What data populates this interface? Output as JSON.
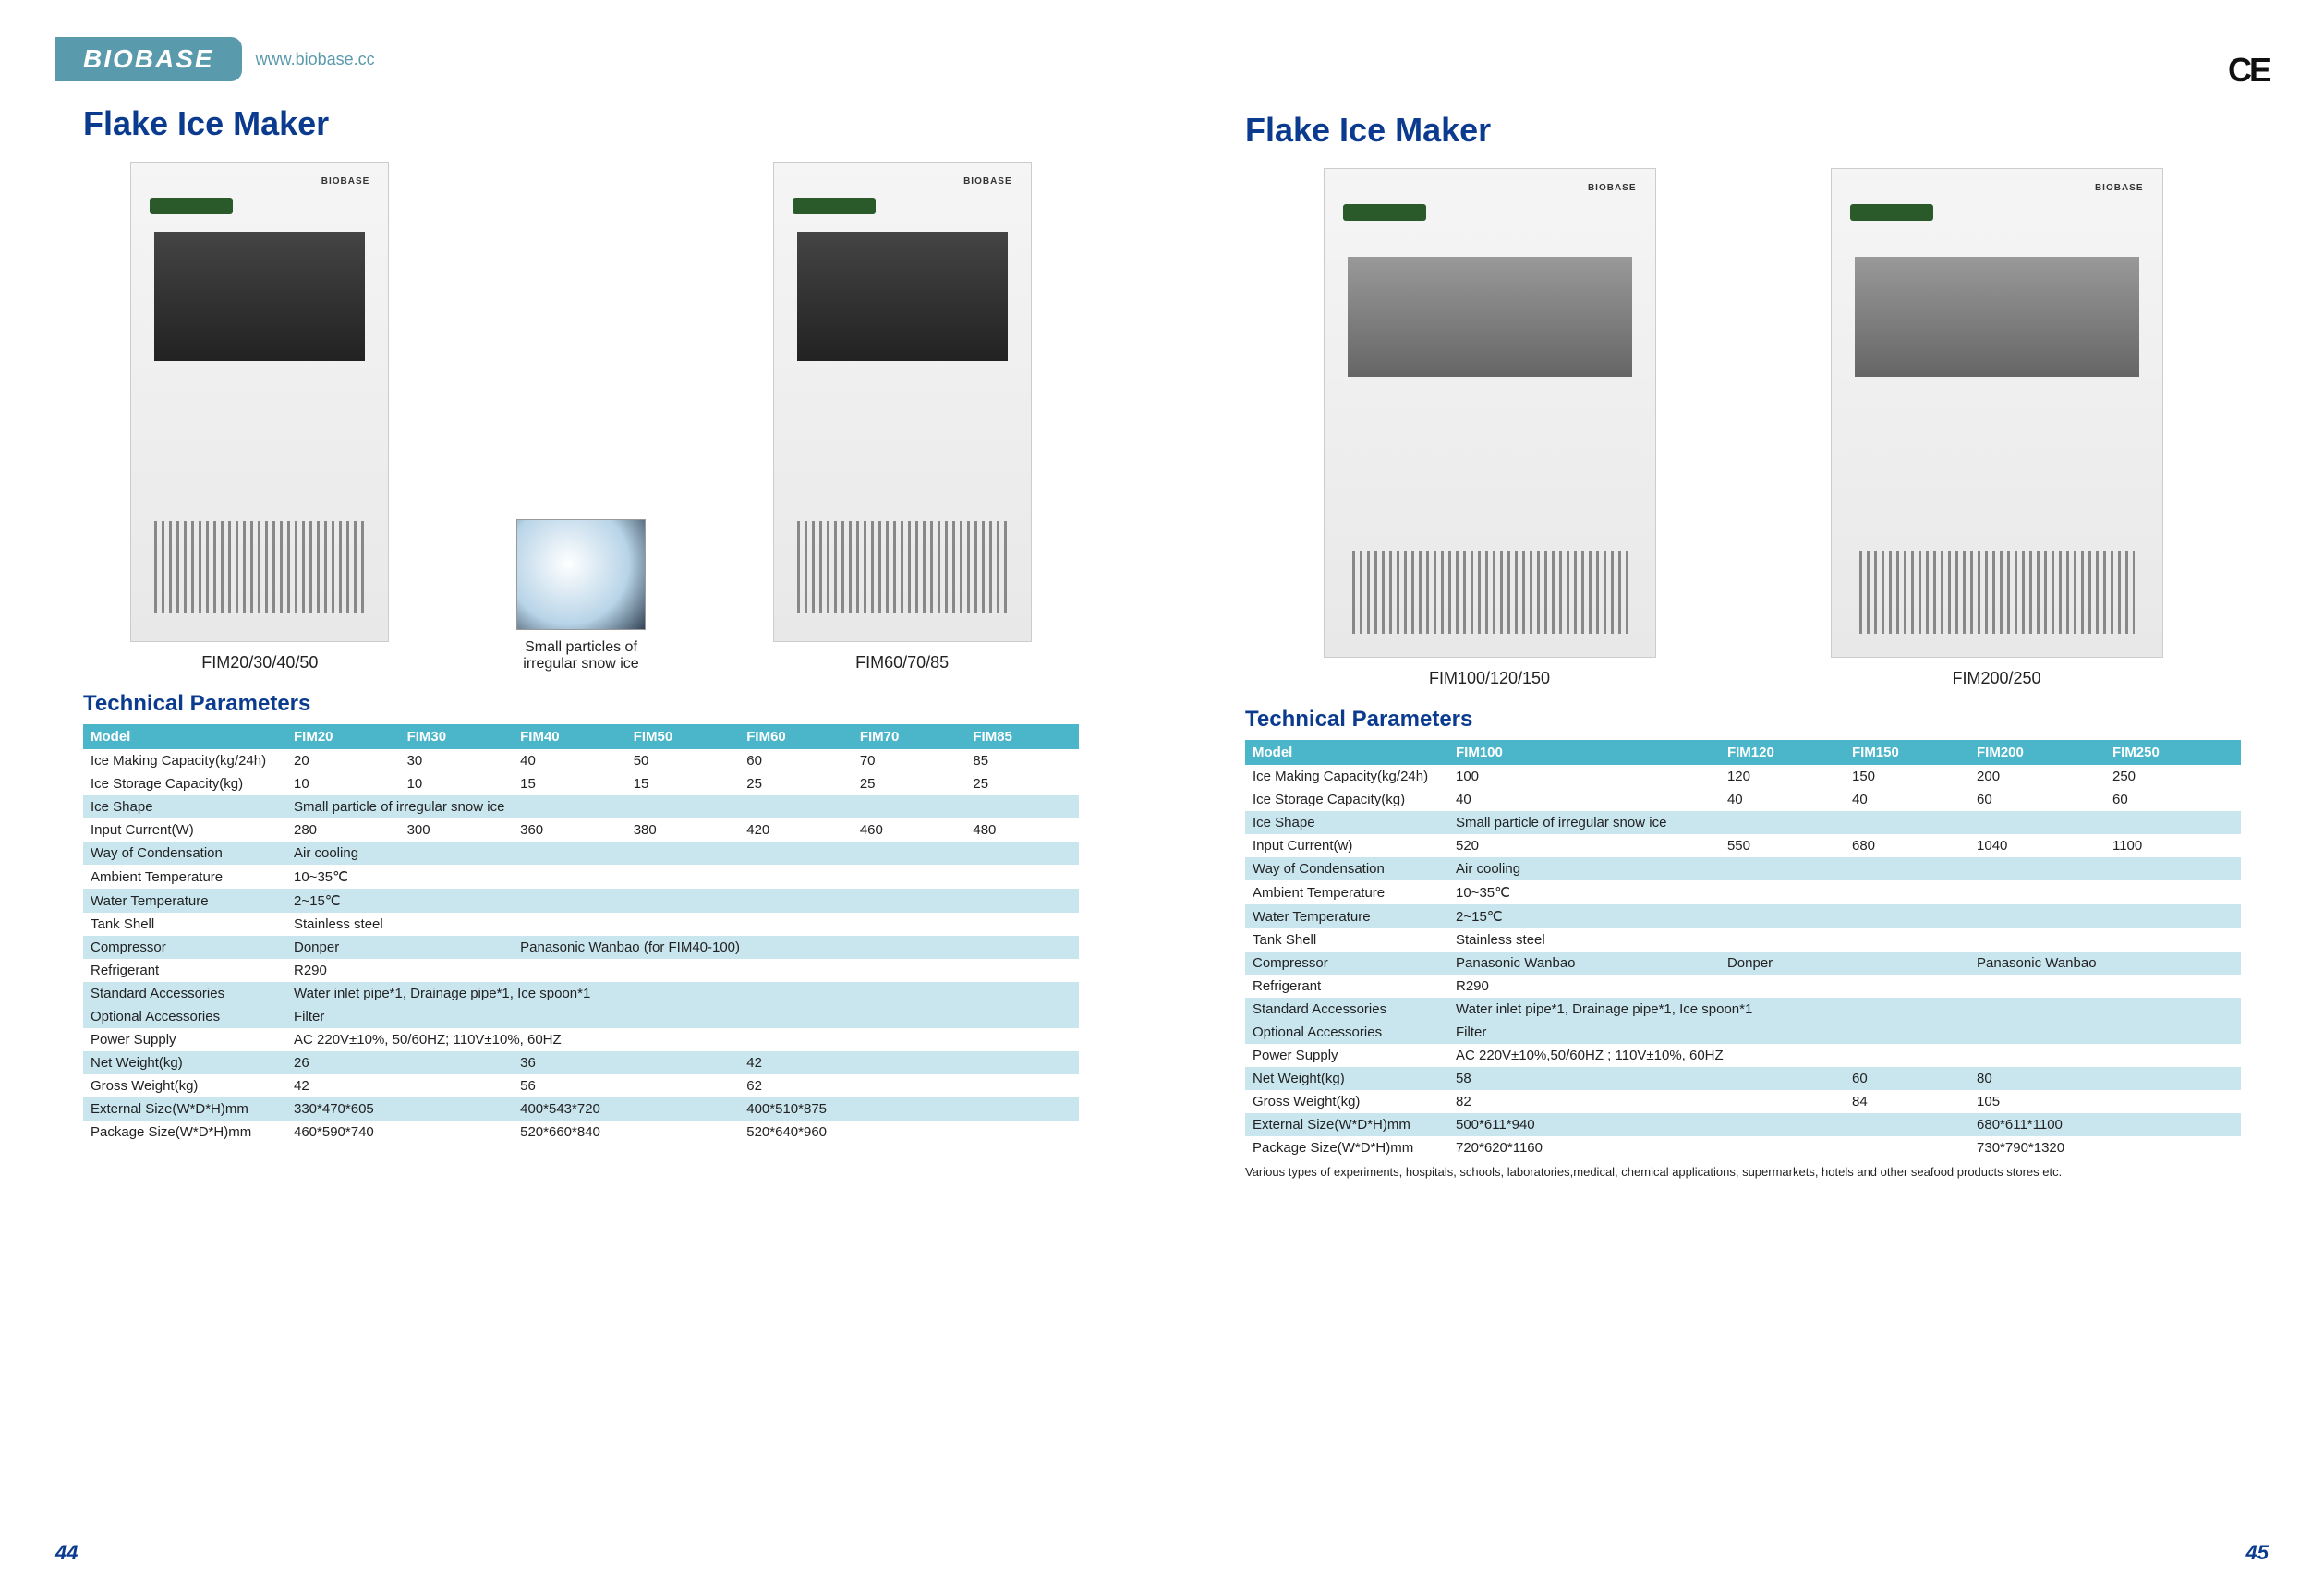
{
  "brand": "BIOBASE",
  "url": "www.biobase.cc",
  "ce": "CE",
  "left": {
    "title": "Flake Ice Maker",
    "products": [
      {
        "label": "FIM20/30/40/50"
      },
      {
        "label": "FIM60/70/85"
      }
    ],
    "ice_caption": "Small particles of irregular snow ice",
    "section": "Technical Parameters",
    "headers": [
      "Model",
      "FIM20",
      "FIM30",
      "FIM40",
      "FIM50",
      "FIM60",
      "FIM70",
      "FIM85"
    ],
    "rows": [
      {
        "band": false,
        "cells": [
          "Ice Making Capacity(kg/24h)",
          "20",
          "30",
          "40",
          "50",
          "60",
          "70",
          "85"
        ]
      },
      {
        "band": false,
        "cells": [
          "Ice Storage Capacity(kg)",
          "10",
          "10",
          "15",
          "15",
          "25",
          "25",
          "25"
        ]
      },
      {
        "band": true,
        "cells": [
          "Ice Shape"
        ],
        "merged": "Small particle of irregular snow ice"
      },
      {
        "band": false,
        "cells": [
          "Input Current(W)",
          "280",
          "300",
          "360",
          "380",
          "420",
          "460",
          "480"
        ]
      },
      {
        "band": true,
        "cells": [
          "Way of Condensation"
        ],
        "merged": "Air cooling"
      },
      {
        "band": false,
        "cells": [
          "Ambient Temperature"
        ],
        "merged": "10~35℃"
      },
      {
        "band": true,
        "cells": [
          "Water Temperature"
        ],
        "merged": "2~15℃"
      },
      {
        "band": false,
        "cells": [
          "Tank Shell"
        ],
        "merged": "Stainless steel"
      },
      {
        "band": true,
        "cells": [
          "Compressor"
        ],
        "split": [
          {
            "span": 2,
            "text": "Donper"
          },
          {
            "span": 5,
            "text": "Panasonic Wanbao (for FIM40-100)"
          }
        ]
      },
      {
        "band": false,
        "cells": [
          "Refrigerant"
        ],
        "merged": "R290"
      },
      {
        "band": true,
        "cells": [
          "Standard Accessories"
        ],
        "merged": "Water inlet pipe*1, Drainage pipe*1, Ice spoon*1"
      },
      {
        "band": true,
        "cells": [
          "Optional Accessories"
        ],
        "merged": "Filter"
      },
      {
        "band": false,
        "cells": [
          "Power Supply"
        ],
        "merged": "AC 220V±10%, 50/60HZ; 110V±10%, 60HZ"
      },
      {
        "band": true,
        "cells": [
          "Net Weight(kg)"
        ],
        "split": [
          {
            "span": 2,
            "text": "26"
          },
          {
            "span": 2,
            "text": "36"
          },
          {
            "span": 3,
            "text": "42"
          }
        ]
      },
      {
        "band": false,
        "cells": [
          "Gross Weight(kg)"
        ],
        "split": [
          {
            "span": 2,
            "text": "42"
          },
          {
            "span": 2,
            "text": "56"
          },
          {
            "span": 3,
            "text": "62"
          }
        ]
      },
      {
        "band": true,
        "cells": [
          "External Size(W*D*H)mm"
        ],
        "split": [
          {
            "span": 2,
            "text": "330*470*605"
          },
          {
            "span": 2,
            "text": "400*543*720"
          },
          {
            "span": 3,
            "text": "400*510*875"
          }
        ]
      },
      {
        "band": false,
        "cells": [
          "Package Size(W*D*H)mm"
        ],
        "split": [
          {
            "span": 2,
            "text": "460*590*740"
          },
          {
            "span": 2,
            "text": "520*660*840"
          },
          {
            "span": 3,
            "text": "520*640*960"
          }
        ]
      }
    ],
    "page_num": "44"
  },
  "right": {
    "title": "Flake Ice Maker",
    "products": [
      {
        "label": "FIM100/120/150"
      },
      {
        "label": "FIM200/250"
      }
    ],
    "section": "Technical Parameters",
    "headers": [
      "Model",
      "FIM100",
      "FIM120",
      "FIM150",
      "FIM200",
      "FIM250"
    ],
    "rows": [
      {
        "band": false,
        "cells": [
          "Ice Making Capacity(kg/24h)",
          "100",
          "120",
          "150",
          "200",
          "250"
        ]
      },
      {
        "band": false,
        "cells": [
          "Ice Storage Capacity(kg)",
          "40",
          "40",
          "40",
          "60",
          "60"
        ]
      },
      {
        "band": true,
        "cells": [
          "Ice Shape"
        ],
        "merged": "Small particle of irregular snow ice"
      },
      {
        "band": false,
        "cells": [
          "Input Current(w)",
          "520",
          "550",
          "680",
          "1040",
          "1100"
        ]
      },
      {
        "band": true,
        "cells": [
          "Way of Condensation"
        ],
        "merged": "Air cooling"
      },
      {
        "band": false,
        "cells": [
          "Ambient Temperature"
        ],
        "merged": "10~35℃"
      },
      {
        "band": true,
        "cells": [
          "Water Temperature"
        ],
        "merged": "2~15℃"
      },
      {
        "band": false,
        "cells": [
          "Tank Shell"
        ],
        "merged": "Stainless steel"
      },
      {
        "band": true,
        "cells": [
          "Compressor"
        ],
        "split": [
          {
            "span": 1,
            "text": "Panasonic Wanbao"
          },
          {
            "span": 2,
            "text": "Donper"
          },
          {
            "span": 2,
            "text": "Panasonic Wanbao"
          }
        ]
      },
      {
        "band": false,
        "cells": [
          "Refrigerant"
        ],
        "merged": "R290"
      },
      {
        "band": true,
        "cells": [
          "Standard Accessories"
        ],
        "merged": "Water inlet pipe*1, Drainage pipe*1, Ice spoon*1"
      },
      {
        "band": true,
        "cells": [
          "Optional Accessories"
        ],
        "merged": "Filter"
      },
      {
        "band": false,
        "cells": [
          "Power Supply"
        ],
        "merged": "AC 220V±10%,50/60HZ ; 110V±10%, 60HZ"
      },
      {
        "band": true,
        "cells": [
          "Net Weight(kg)"
        ],
        "split": [
          {
            "span": 2,
            "text": "58"
          },
          {
            "span": 1,
            "text": "60"
          },
          {
            "span": 2,
            "text": "80"
          }
        ]
      },
      {
        "band": false,
        "cells": [
          "Gross Weight(kg)"
        ],
        "split": [
          {
            "span": 2,
            "text": "82"
          },
          {
            "span": 1,
            "text": "84"
          },
          {
            "span": 2,
            "text": "105"
          }
        ]
      },
      {
        "band": true,
        "cells": [
          "External Size(W*D*H)mm"
        ],
        "split": [
          {
            "span": 3,
            "text": "500*611*940"
          },
          {
            "span": 2,
            "text": "680*611*1100"
          }
        ]
      },
      {
        "band": false,
        "cells": [
          "Package Size(W*D*H)mm"
        ],
        "split": [
          {
            "span": 3,
            "text": "720*620*1160"
          },
          {
            "span": 2,
            "text": "730*790*1320"
          }
        ]
      }
    ],
    "footnote": "Various types of experiments, hospitals, schools, laboratories,medical, chemical applications, supermarkets, hotels and other seafood products stores etc.",
    "page_num": "45"
  }
}
